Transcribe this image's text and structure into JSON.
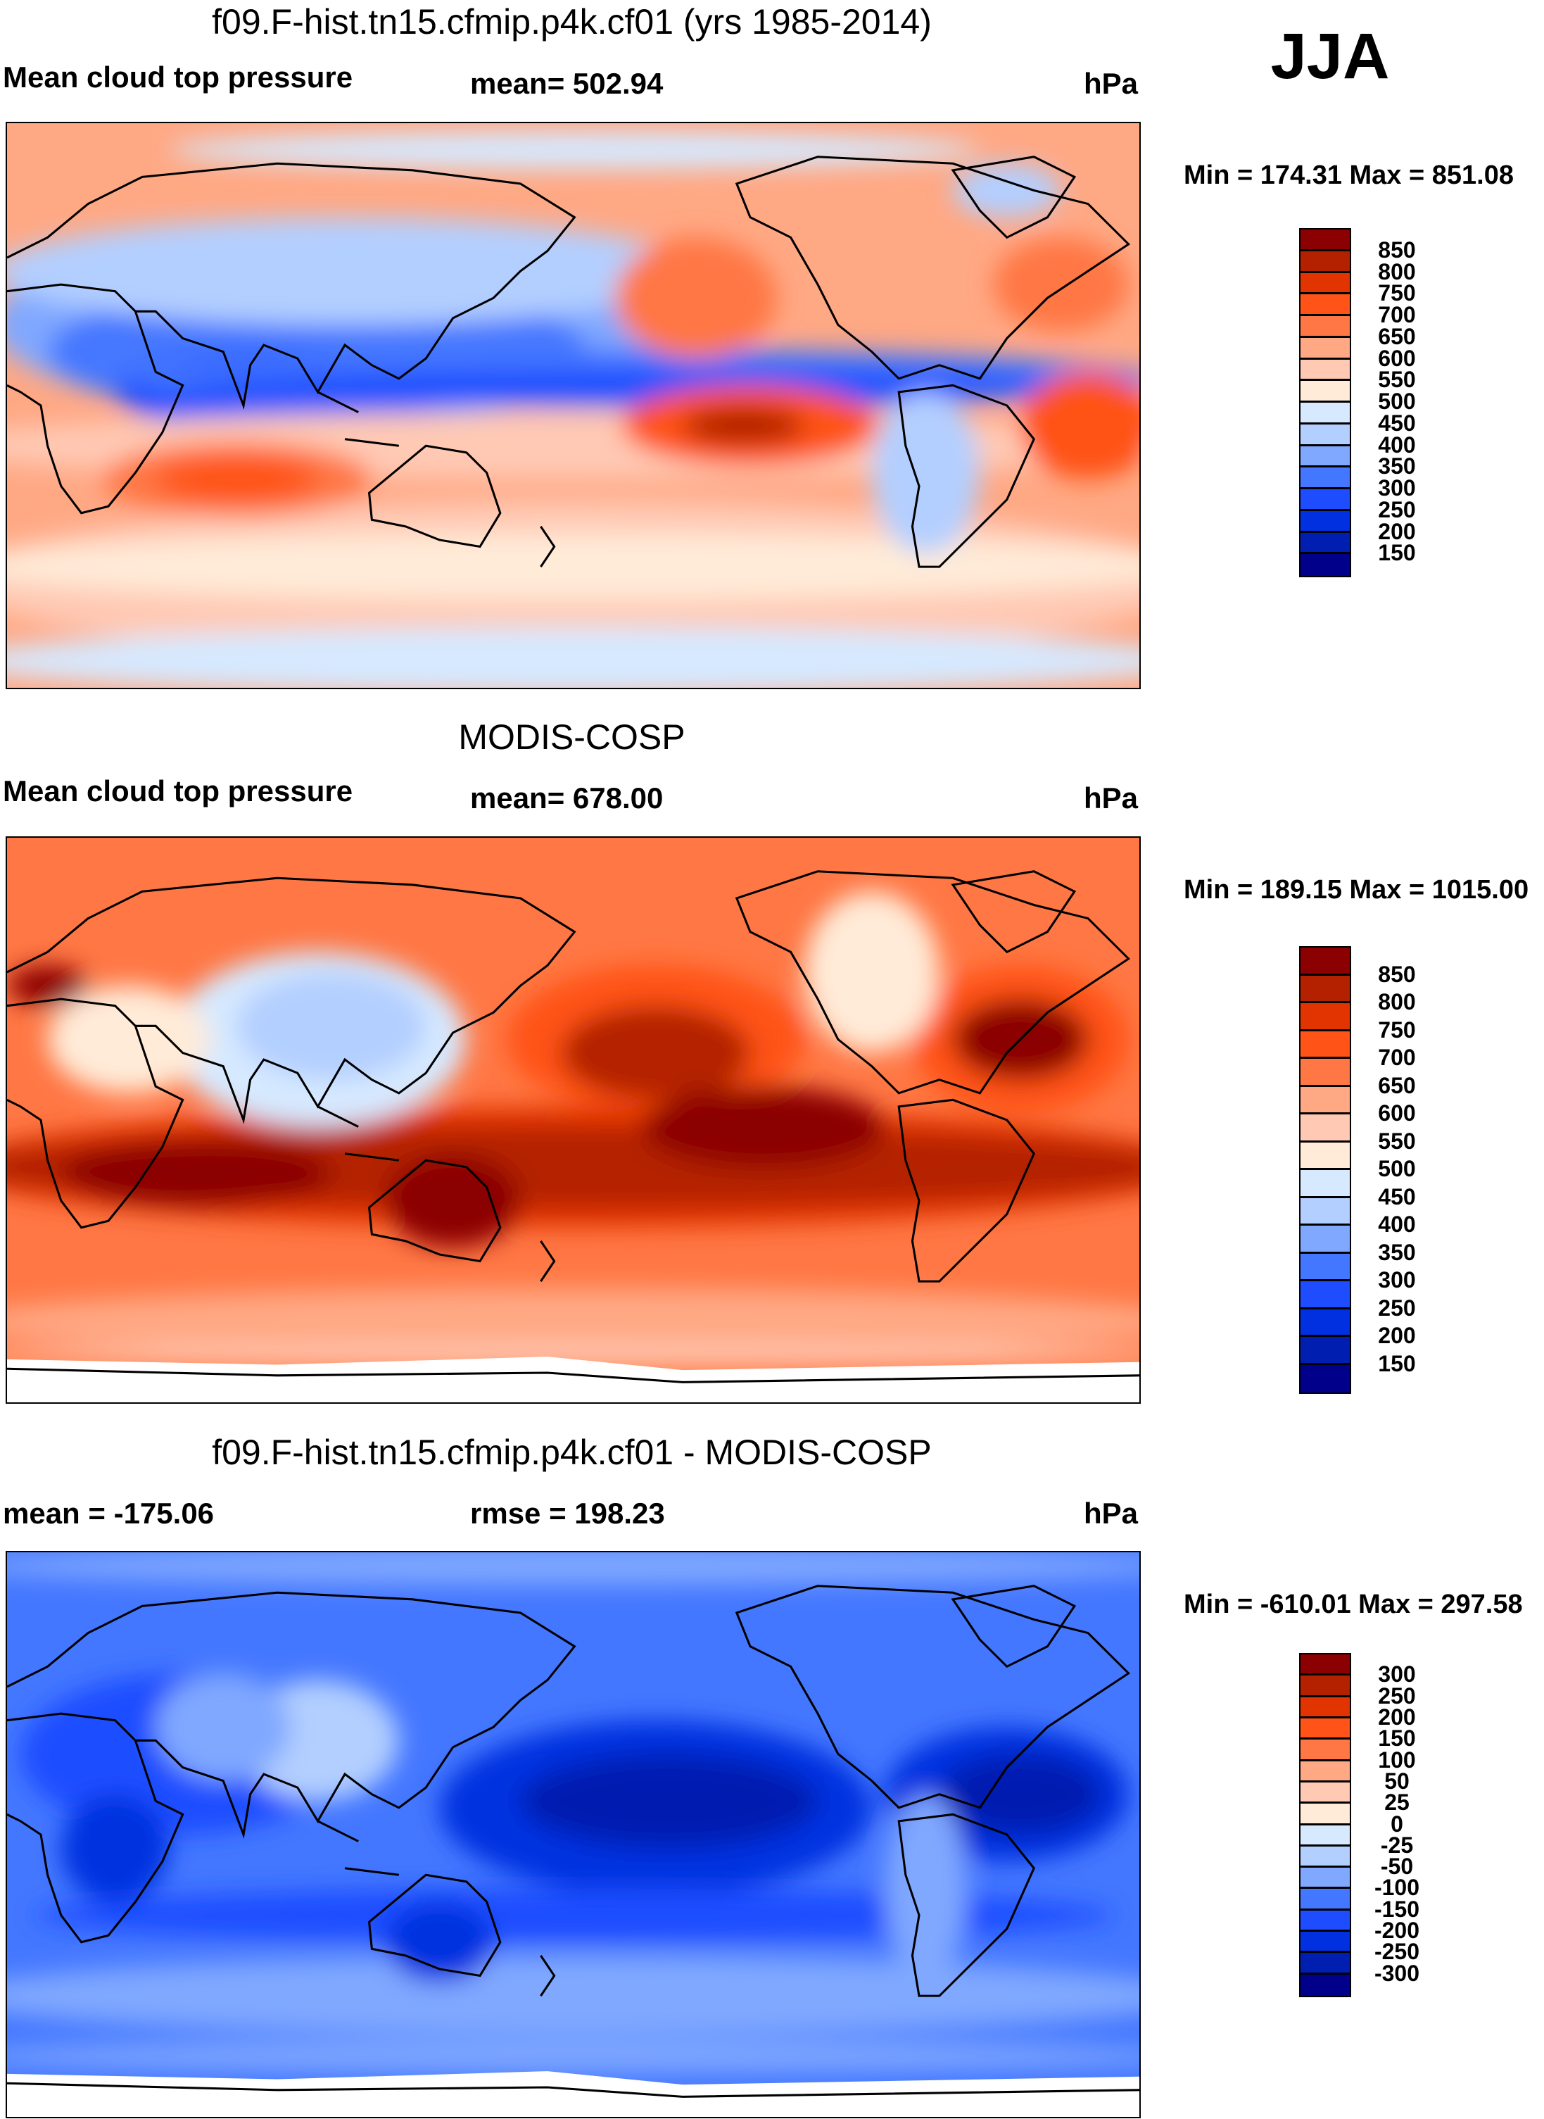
{
  "season": "JJA",
  "colors": {
    "levels": [
      "#8b0000",
      "#b42100",
      "#e23400",
      "#ff5317",
      "#ff7744",
      "#ffa884",
      "#ffc9b4",
      "#ffebd8",
      "#d6e9ff",
      "#b3cfff",
      "#80a8ff",
      "#4477ff",
      "#1d4dff",
      "#0030e0",
      "#001fb0",
      "#00008b"
    ]
  },
  "chart_data": [
    {
      "type": "heatmap",
      "title": "f09.F-hist.tn15.cfmip.p4k.cf01 (yrs 1985-2014)",
      "left_label": "Mean cloud top pressure",
      "center_label": "mean= 502.94",
      "units": "hPa",
      "minmax": "Min = 174.31 Max = 851.08",
      "colorbar_ticks": [
        "850",
        "800",
        "750",
        "700",
        "650",
        "600",
        "550",
        "500",
        "450",
        "400",
        "350",
        "300",
        "250",
        "200",
        "150"
      ]
    },
    {
      "type": "heatmap",
      "title": "MODIS-COSP",
      "left_label": "Mean cloud top pressure",
      "center_label": "mean= 678.00",
      "units": "hPa",
      "minmax": "Min = 189.15 Max = 1015.00",
      "colorbar_ticks": [
        "850",
        "800",
        "750",
        "700",
        "650",
        "600",
        "550",
        "500",
        "450",
        "400",
        "350",
        "300",
        "250",
        "200",
        "150"
      ]
    },
    {
      "type": "heatmap",
      "title": "f09.F-hist.tn15.cfmip.p4k.cf01 - MODIS-COSP",
      "left_label": "mean = -175.06",
      "center_label": "rmse = 198.23",
      "units": "hPa",
      "minmax": "Min = -610.01 Max = 297.58",
      "colorbar_ticks": [
        "300",
        "250",
        "200",
        "150",
        "100",
        "50",
        "25",
        "0",
        "-25",
        "-50",
        "-100",
        "-150",
        "-200",
        "-250",
        "-300"
      ]
    }
  ]
}
